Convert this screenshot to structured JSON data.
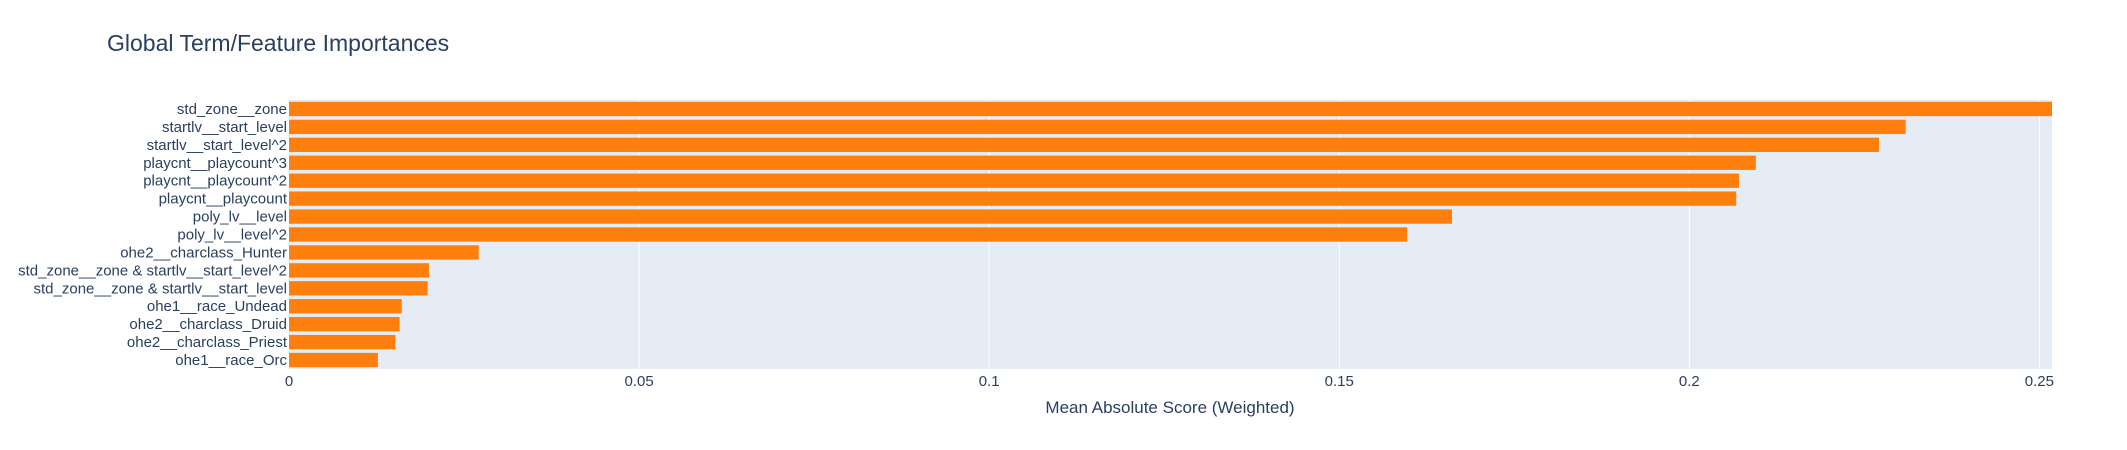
{
  "chart_data": {
    "type": "bar",
    "orientation": "horizontal",
    "title": "Global Term/Feature Importances",
    "xlabel": "Mean Absolute Score (Weighted)",
    "ylabel": "",
    "xlim": [
      0,
      0.2518
    ],
    "xticks": [
      0,
      0.05,
      0.1,
      0.15,
      0.2,
      0.25
    ],
    "xtick_labels": [
      "0",
      "0.05",
      "0.1",
      "0.15",
      "0.2",
      "0.25"
    ],
    "grid": true,
    "bar_color": "#ff7f0e",
    "plot_bg": "#e5ecf6",
    "categories": [
      "std_zone__zone",
      "startlv__start_level",
      "startlv__start_level^2",
      "playcnt__playcount^3",
      "playcnt__playcount^2",
      "playcnt__playcount",
      "poly_lv__level",
      "poly_lv__level^2",
      "ohe2__charclass_Hunter",
      "std_zone__zone & startlv__start_level^2",
      "std_zone__zone & startlv__start_level",
      "ohe1__race_Undead",
      "ohe2__charclass_Druid",
      "ohe2__charclass_Priest",
      "ohe1__race_Orc"
    ],
    "values": [
      0.2518,
      0.2309,
      0.2271,
      0.2095,
      0.2071,
      0.2067,
      0.1661,
      0.1597,
      0.0271,
      0.02,
      0.0198,
      0.0161,
      0.0158,
      0.0152,
      0.0127
    ]
  }
}
